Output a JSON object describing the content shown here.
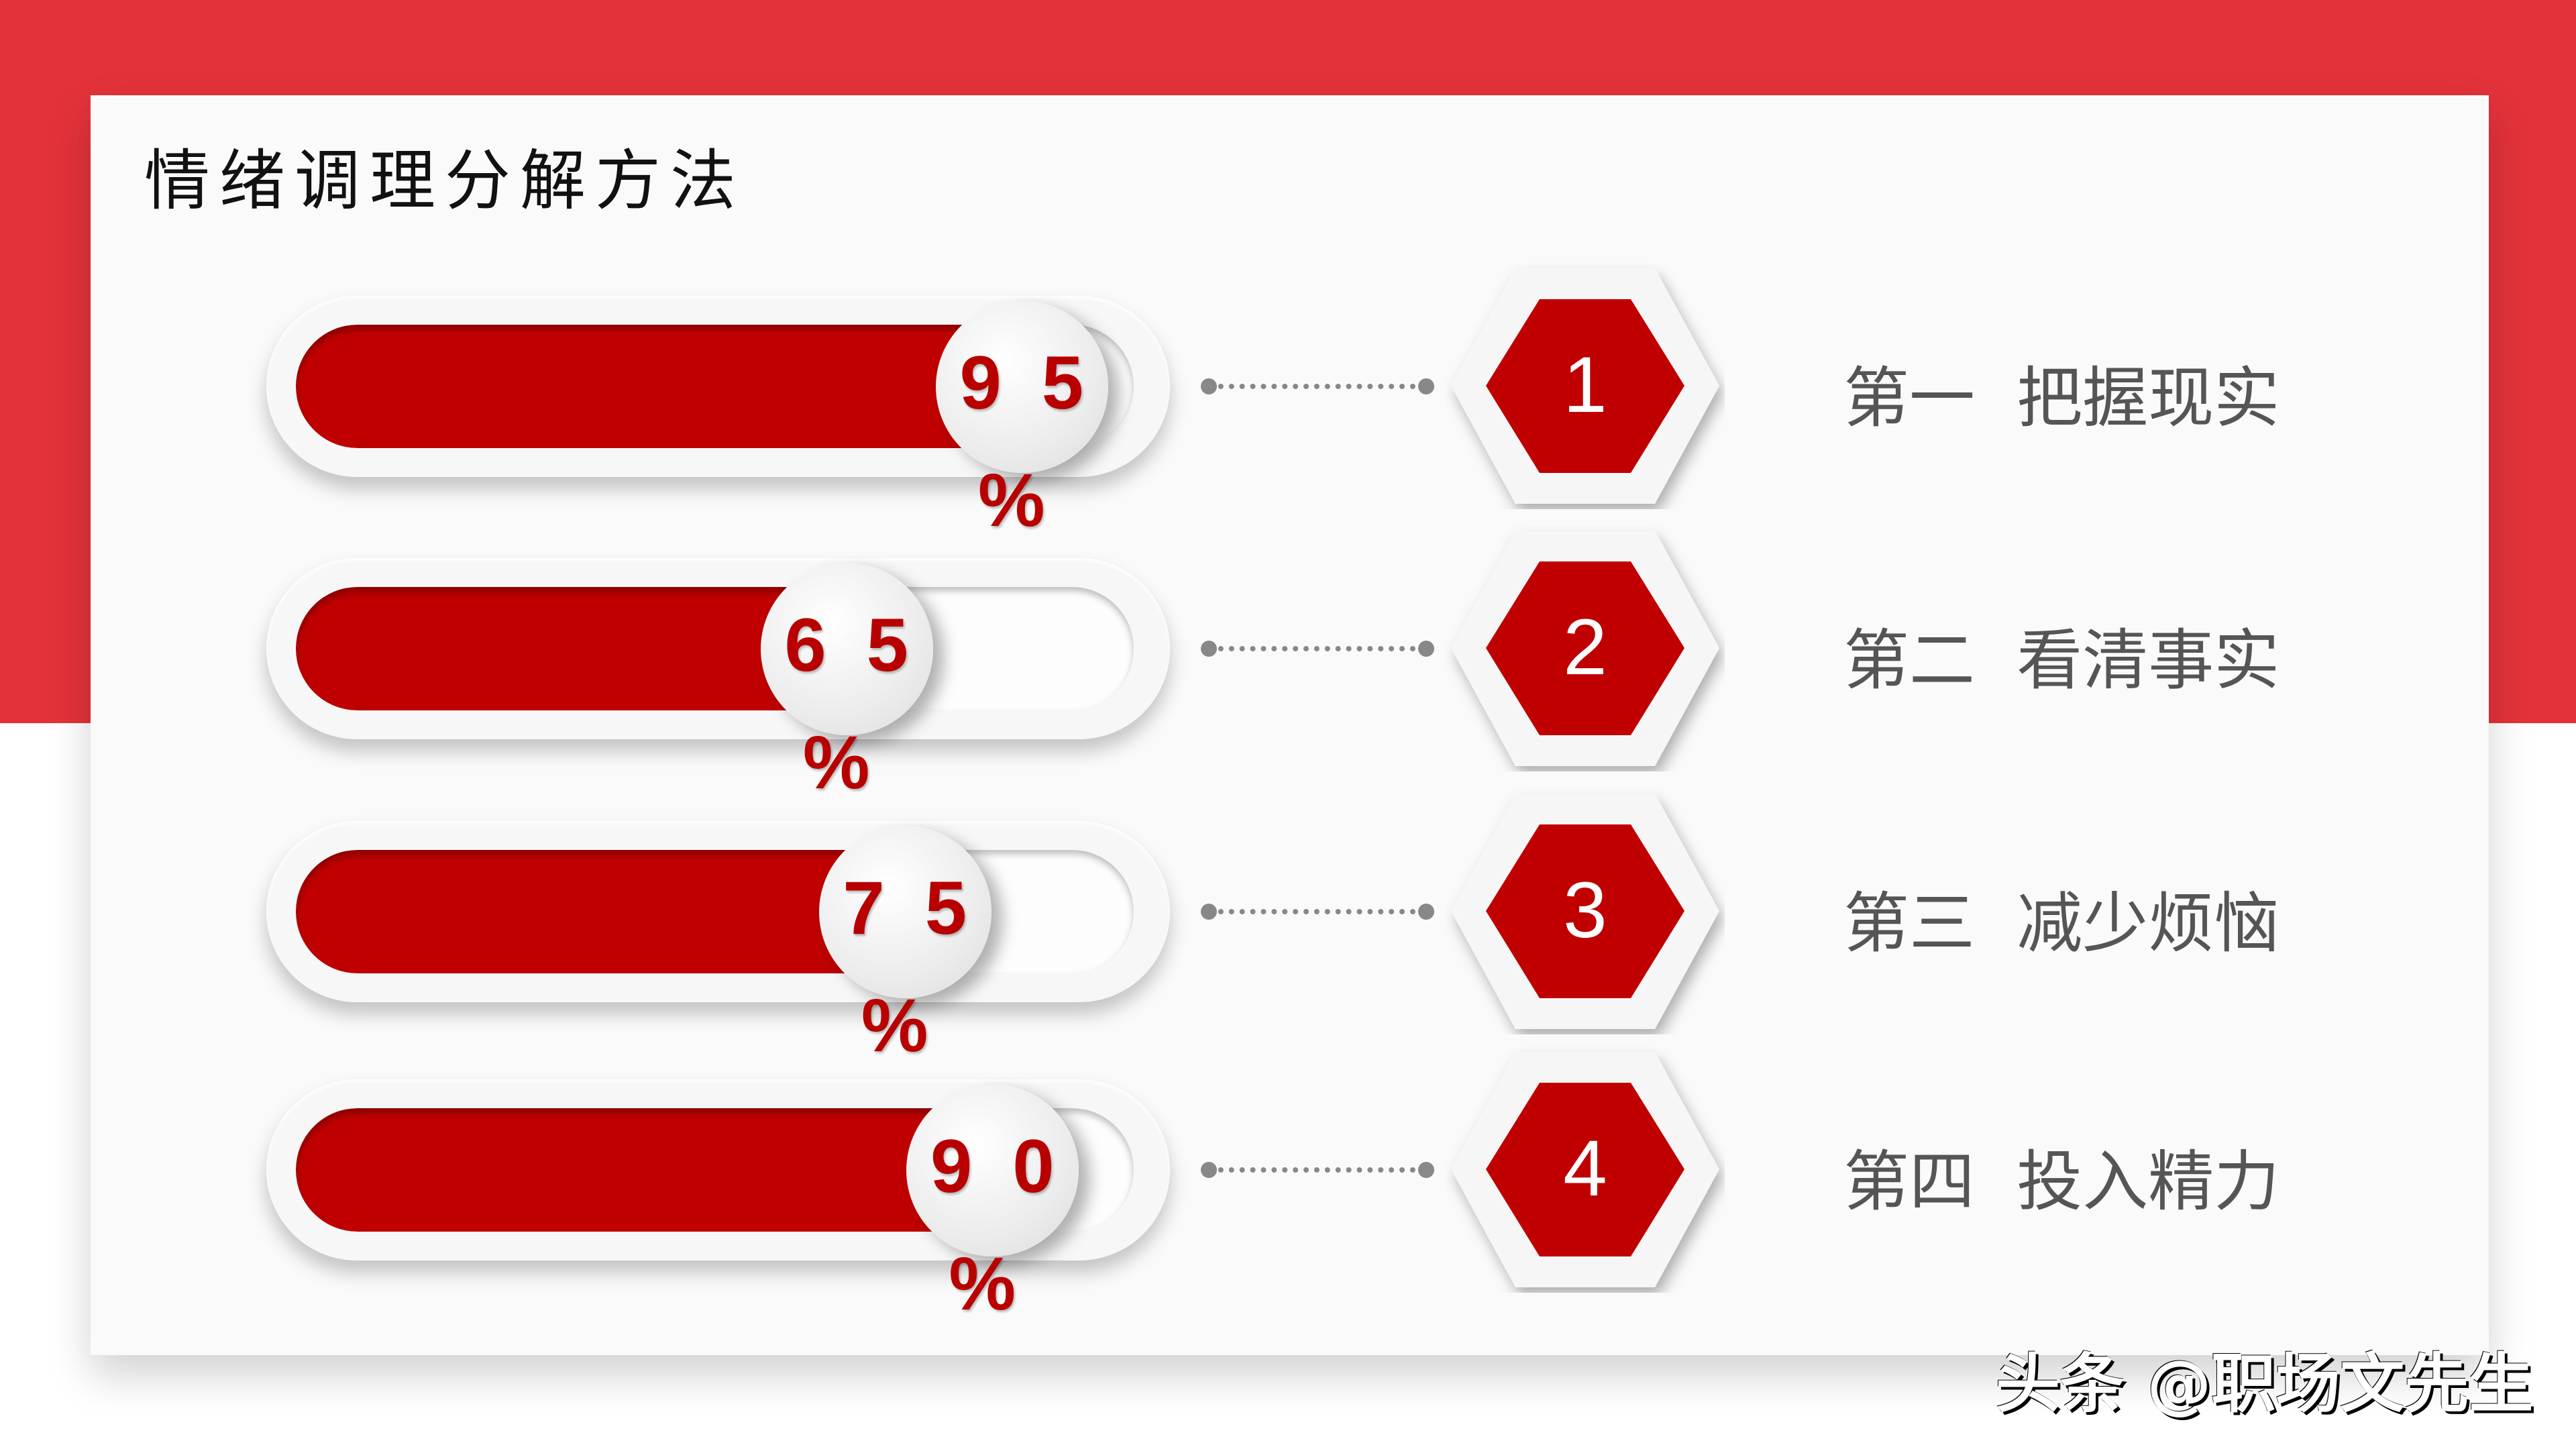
{
  "title": "情绪调理分解方法",
  "colors": {
    "accent": "#e3323a",
    "bar_fill": "#c00000",
    "label": "#555555"
  },
  "items": [
    {
      "percent": 95,
      "percent_digits": "95",
      "percent_sign": "%",
      "number": "1",
      "label": "第一  把握现实"
    },
    {
      "percent": 65,
      "percent_digits": "65",
      "percent_sign": "%",
      "number": "2",
      "label": "第二  看清事实"
    },
    {
      "percent": 75,
      "percent_digits": "75",
      "percent_sign": "%",
      "number": "3",
      "label": "第三  减少烦恼"
    },
    {
      "percent": 90,
      "percent_digits": "90",
      "percent_sign": "%",
      "number": "4",
      "label": "第四  投入精力"
    }
  ],
  "watermark": "头条 @职场文先生"
}
